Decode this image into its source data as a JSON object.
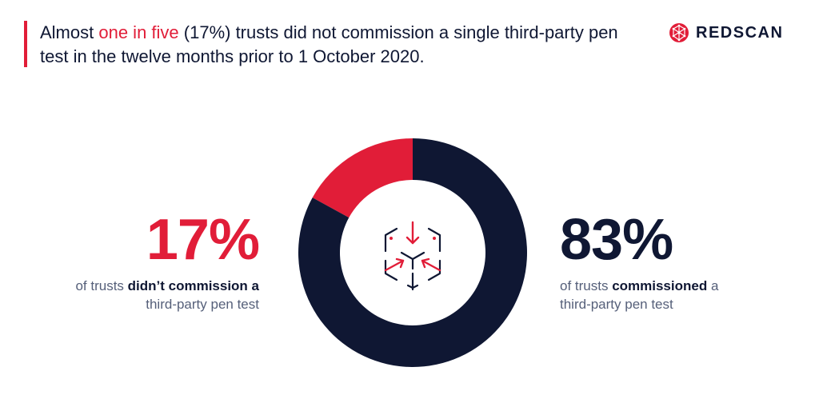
{
  "headline": {
    "pre": "Almost ",
    "highlight": "one in five",
    "post": " (17%) trusts did not commission a single third-party pen test in the twelve months prior to 1 October 2020."
  },
  "brand": {
    "name": "REDSCAN",
    "logo_icon": "globe-network-icon"
  },
  "colors": {
    "accent": "#e11d38",
    "navy": "#0f1733",
    "muted": "#56607a"
  },
  "center_icon": "cube-arrows-icon",
  "left_stat": {
    "value": "17%",
    "line1_pre": "of trusts ",
    "line1_bold": "didn’t commission a",
    "line2": "third-party pen test"
  },
  "right_stat": {
    "value": "83%",
    "line1_pre": "of trusts ",
    "line1_bold": "commissioned",
    "line1_post": " a",
    "line2": "third-party pen test"
  },
  "chart_data": {
    "type": "pie",
    "donut": true,
    "categories": [
      "didn’t commission",
      "commissioned"
    ],
    "values": [
      17,
      83
    ],
    "colors": [
      "#e11d38",
      "#0f1733"
    ],
    "start_angle_deg": 0,
    "direction": "counterclockwise"
  }
}
